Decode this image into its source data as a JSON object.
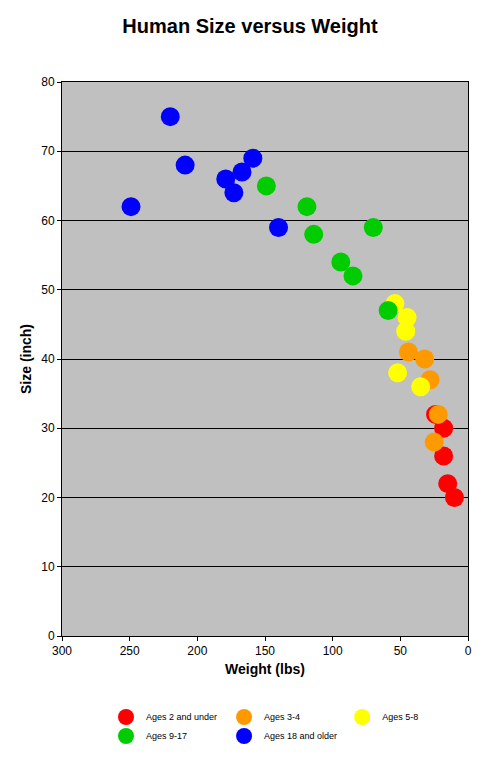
{
  "chart_data": {
    "type": "scatter",
    "title": "Human Size versus Weight",
    "x_label": "Weight (lbs)",
    "y_label": "Size (inch)",
    "xlim": [
      300,
      0
    ],
    "xticks": [
      300,
      250,
      200,
      150,
      100,
      50,
      0
    ],
    "ylim": [
      0,
      80
    ],
    "yticks": [
      0,
      10,
      20,
      30,
      40,
      50,
      60,
      70,
      80
    ],
    "grid": true,
    "legend": "bottom",
    "marker": "circle",
    "series": [
      {
        "name": "Ages 2 and under",
        "color": "#ff0000",
        "x": [
          24,
          18,
          18,
          15,
          10
        ],
        "values": [
          32,
          30,
          26,
          22,
          20
        ]
      },
      {
        "name": "Ages 3-4",
        "color": "#ff9900",
        "x": [
          44,
          32,
          28,
          22,
          25
        ],
        "values": [
          41,
          40,
          37,
          32,
          28
        ]
      },
      {
        "name": "Ages 5-8",
        "color": "#ffff00",
        "x": [
          54,
          45,
          46,
          52,
          35
        ],
        "values": [
          48,
          46,
          44,
          38,
          36
        ]
      },
      {
        "name": "Ages 9-17",
        "color": "#00cc00",
        "x": [
          149,
          119,
          114,
          70,
          94,
          85,
          59
        ],
        "values": [
          65,
          62,
          58,
          59,
          54,
          52,
          47
        ]
      },
      {
        "name": "Ages 18 and older",
        "color": "#0000ff",
        "x": [
          220,
          209,
          249,
          179,
          167,
          159,
          173,
          140
        ],
        "values": [
          75,
          68,
          62,
          66,
          67,
          69,
          64,
          59
        ]
      }
    ]
  }
}
